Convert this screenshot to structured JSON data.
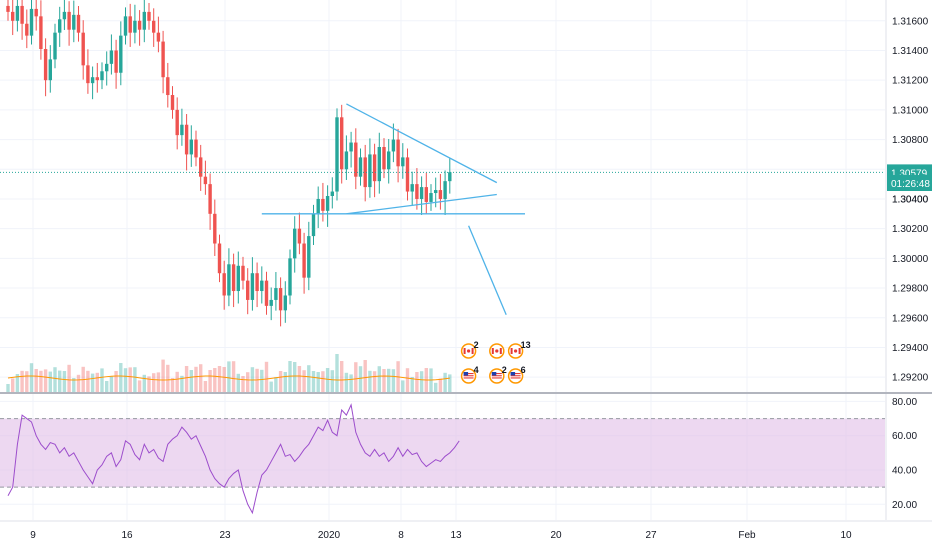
{
  "chart_data": [
    {
      "type": "candlestick",
      "title": "",
      "x_ticks": [
        "9",
        "16",
        "23",
        "2020",
        "8",
        "13",
        "20",
        "27",
        "Feb",
        "10"
      ],
      "y_ticks": [
        "1.31600",
        "1.31400",
        "1.31200",
        "1.31000",
        "1.30800",
        "1.30600",
        "1.30400",
        "1.30200",
        "1.30000",
        "1.29800",
        "1.29600",
        "1.29400",
        "1.29200"
      ],
      "ylim": [
        1.291,
        1.3174
      ],
      "last_price": "1.30579",
      "countdown": "01:26:48",
      "partial_tick": "1.30400",
      "candle_closes": [
        1.3166,
        1.316,
        1.317,
        1.3158,
        1.315,
        1.3168,
        1.3163,
        1.3141,
        1.312,
        1.3134,
        1.3152,
        1.3161,
        1.3166,
        1.3154,
        1.3164,
        1.3152,
        1.313,
        1.3118,
        1.3122,
        1.312,
        1.3126,
        1.3131,
        1.314,
        1.3125,
        1.315,
        1.3163,
        1.3152,
        1.316,
        1.3154,
        1.3166,
        1.316,
        1.3152,
        1.3146,
        1.3122,
        1.311,
        1.31,
        1.3083,
        1.309,
        1.307,
        1.308,
        1.3068,
        1.3055,
        1.305,
        1.303,
        1.301,
        1.299,
        1.2975,
        1.2996,
        1.2978,
        1.2995,
        1.2985,
        1.2972,
        1.299,
        1.2978,
        1.2985,
        1.2968,
        1.2972,
        1.298,
        1.2965,
        1.2975,
        1.3,
        1.302,
        1.301,
        1.2987,
        1.3015,
        1.303,
        1.304,
        1.3032,
        1.3042,
        1.3045,
        1.3095,
        1.306,
        1.3072,
        1.3078,
        1.3055,
        1.3068,
        1.3048,
        1.307,
        1.3052,
        1.3075,
        1.306,
        1.3072,
        1.308,
        1.3062,
        1.3068,
        1.3045,
        1.305,
        1.304,
        1.3048,
        1.3038,
        1.3044,
        1.3046,
        1.304,
        1.3052,
        1.3058
      ],
      "drawings": {
        "triangle_upper": {
          "from": {
            "bar": 72,
            "price": 1.3104
          },
          "to": {
            "bar": 104,
            "price": 1.3051
          }
        },
        "triangle_lower": {
          "from": {
            "bar": 72,
            "price": 1.303
          },
          "to": {
            "bar": 104,
            "price": 1.3043
          }
        },
        "support_line": {
          "from": {
            "bar": 54,
            "price": 1.303
          },
          "to": {
            "bar": 110,
            "price": 1.303
          }
        },
        "projection": {
          "from": {
            "bar": 98,
            "price": 1.3022
          },
          "to": {
            "bar": 106,
            "price": 1.2962
          }
        }
      },
      "events": [
        {
          "flag": "canada",
          "count": "2",
          "row": "top",
          "bar": 98
        },
        {
          "flag": "usa",
          "count": "4",
          "row": "bottom",
          "bar": 98
        },
        {
          "flag": "canada",
          "count": "",
          "row": "top",
          "bar": 104
        },
        {
          "flag": "canada",
          "count": "13",
          "row": "top",
          "bar": 108
        },
        {
          "flag": "usa",
          "count": "2",
          "row": "bottom",
          "bar": 104
        },
        {
          "flag": "usa",
          "count": "6",
          "row": "bottom",
          "bar": 108
        }
      ],
      "colors": {
        "up": "#26a69a",
        "down": "#ef5350",
        "volume_ma": "#ff9800",
        "drawing": "#4fb3e8",
        "price_line": "#26a69a"
      }
    },
    {
      "type": "line",
      "title": "",
      "y_ticks": [
        "80.00",
        "60.00",
        "40.00",
        "20.00"
      ],
      "ylim": [
        12,
        82
      ],
      "band": [
        30,
        70
      ],
      "values": [
        25,
        30,
        55,
        72,
        70,
        68,
        60,
        55,
        52,
        56,
        55,
        50,
        53,
        48,
        50,
        45,
        40,
        36,
        32,
        40,
        43,
        48,
        50,
        42,
        46,
        57,
        55,
        49,
        46,
        55,
        50,
        52,
        47,
        45,
        55,
        58,
        60,
        65,
        62,
        58,
        60,
        54,
        48,
        40,
        35,
        32,
        30,
        35,
        38,
        40,
        28,
        20,
        15,
        27,
        37,
        40,
        45,
        50,
        55,
        48,
        49,
        45,
        48,
        52,
        55,
        60,
        65,
        63,
        69,
        62,
        60,
        75,
        72,
        78,
        62,
        55,
        50,
        48,
        52,
        48,
        50,
        45,
        48,
        53,
        48,
        52,
        49,
        50,
        45,
        42,
        44,
        46,
        45,
        48,
        50,
        53,
        57
      ],
      "color": "#9c4dcc",
      "band_color": "#e1bee7"
    }
  ]
}
